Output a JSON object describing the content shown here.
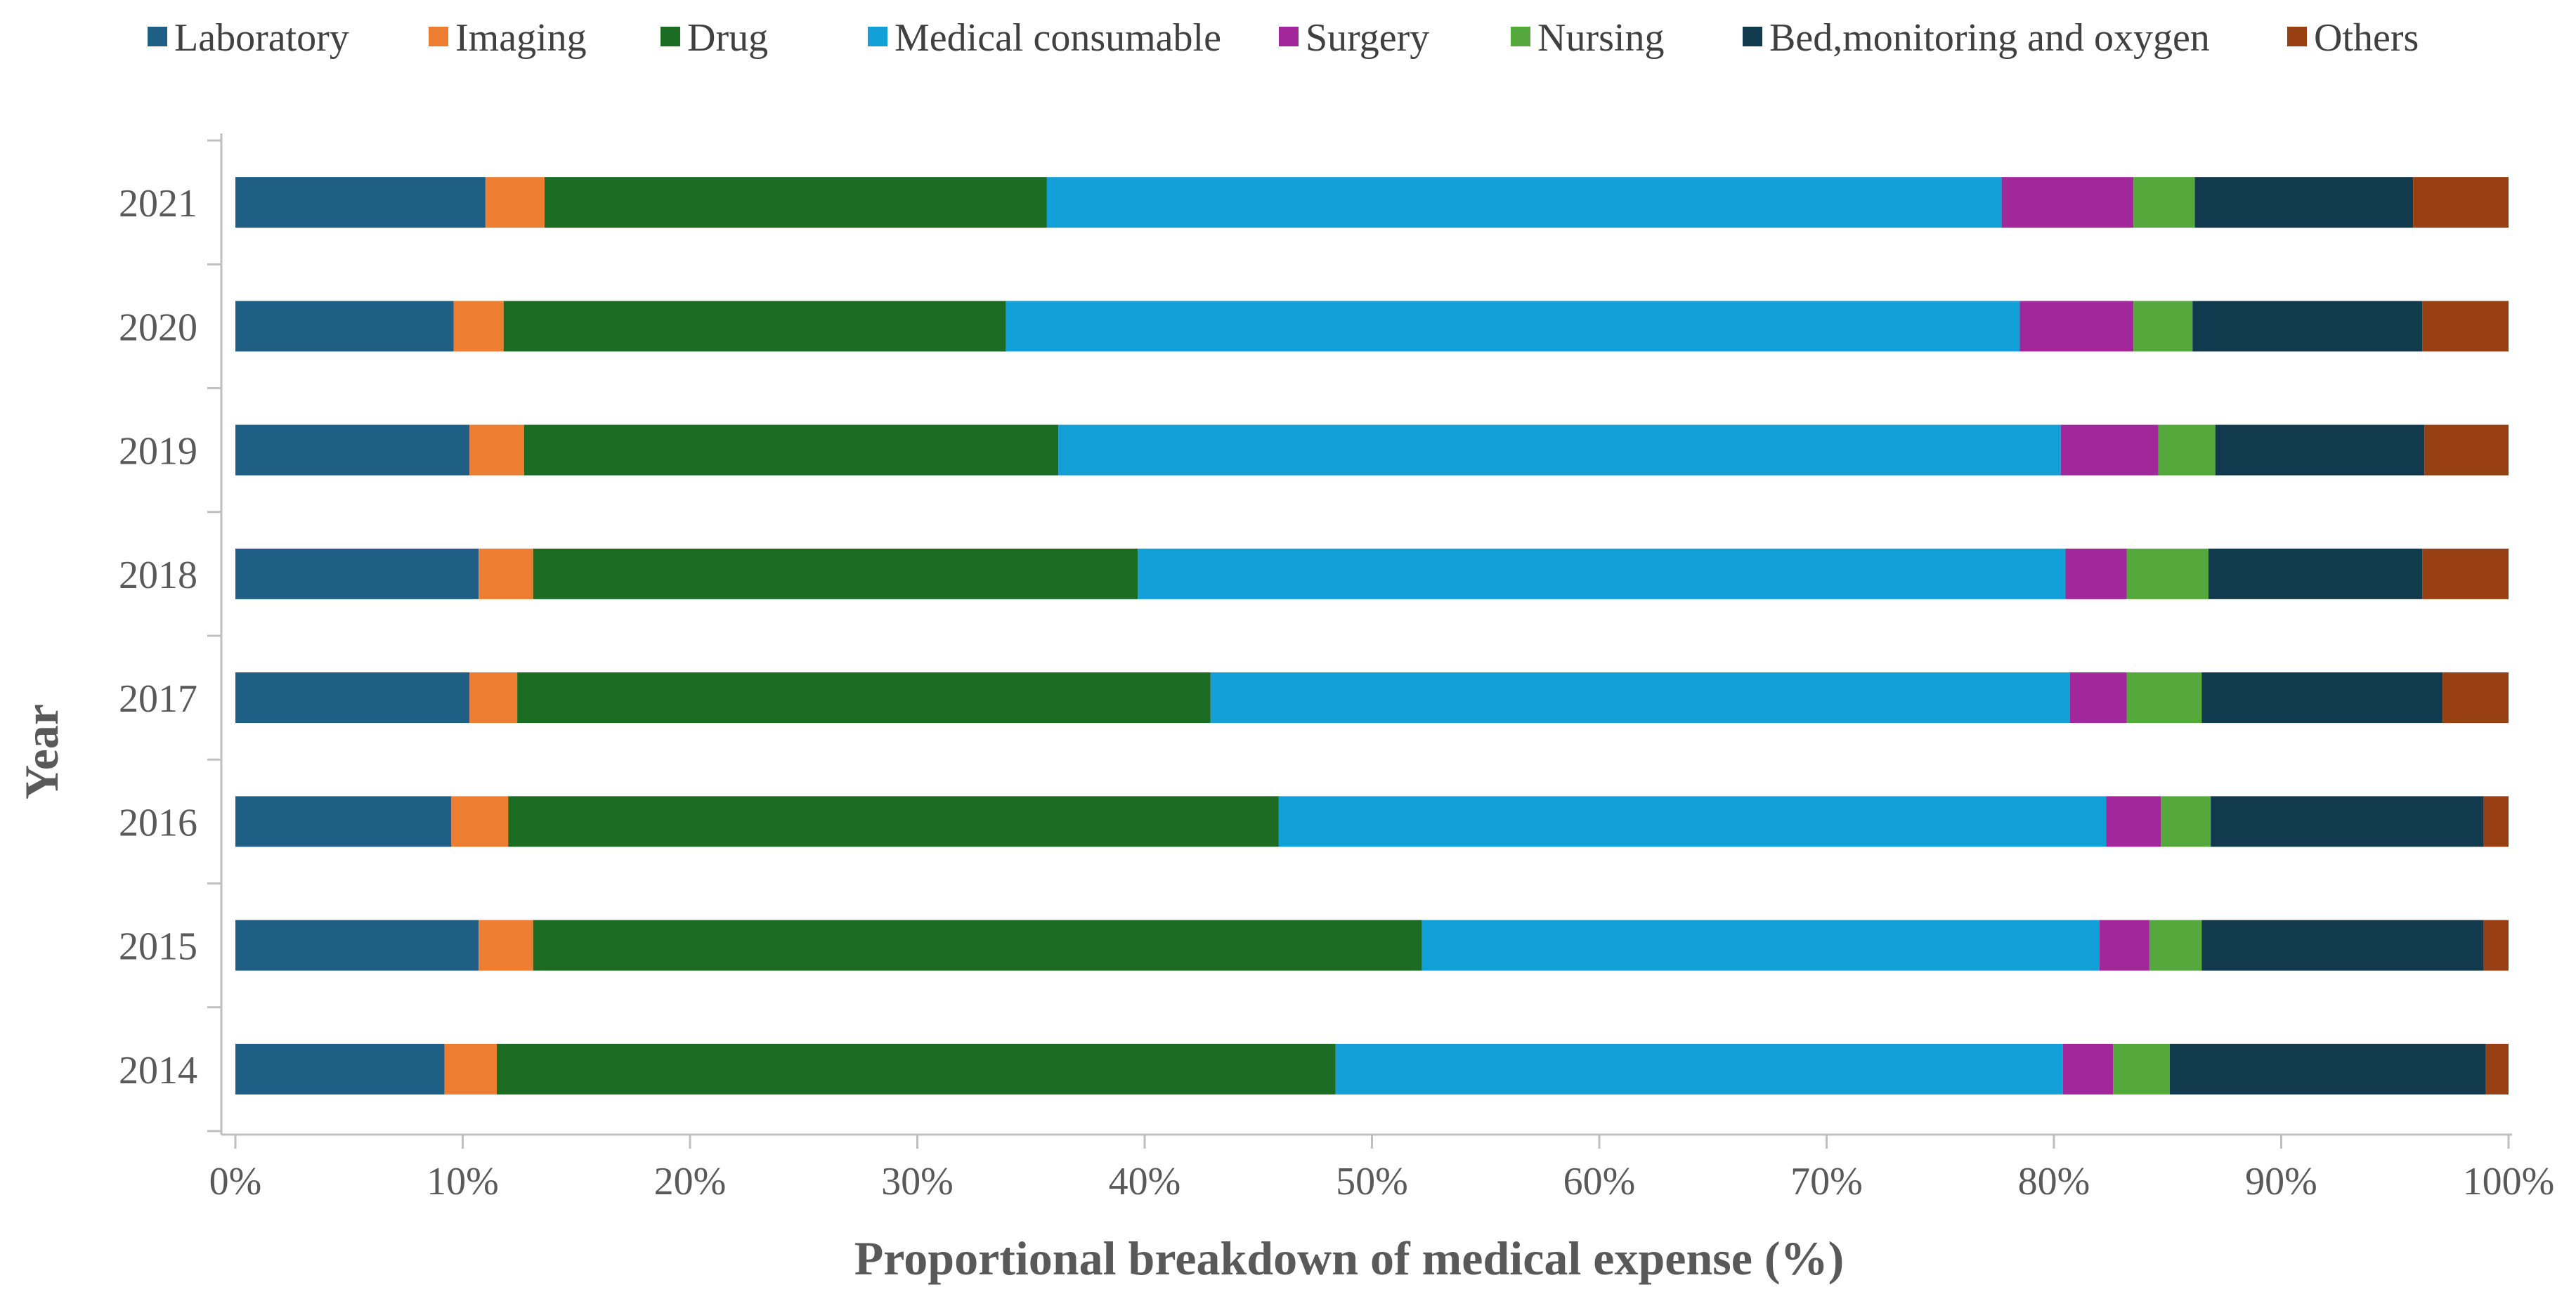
{
  "chart_data": {
    "type": "bar",
    "orientation": "horizontal",
    "stacked": "percent",
    "title": "",
    "xlabel": "Proportional breakdown of medical expense (%)",
    "ylabel": "Year",
    "xlim": [
      0,
      100
    ],
    "x_ticks": [
      "0%",
      "10%",
      "20%",
      "30%",
      "40%",
      "50%",
      "60%",
      "70%",
      "80%",
      "90%",
      "100%"
    ],
    "grid": false,
    "legend_position": "top",
    "categories": [
      "2021",
      "2020",
      "2019",
      "2018",
      "2017",
      "2016",
      "2015",
      "2014"
    ],
    "series": [
      {
        "name": "Laboratory",
        "color": "#1f5f86",
        "values": [
          11.0,
          9.6,
          10.3,
          10.7,
          10.3,
          9.5,
          10.7,
          9.2
        ]
      },
      {
        "name": "Imaging",
        "color": "#ed7d31",
        "values": [
          2.6,
          2.2,
          2.4,
          2.4,
          2.1,
          2.5,
          2.4,
          2.3
        ]
      },
      {
        "name": "Drug",
        "color": "#1b6b22",
        "values": [
          22.1,
          22.1,
          23.5,
          26.6,
          30.5,
          33.9,
          39.1,
          36.9
        ]
      },
      {
        "name": "Medical consumable",
        "color": "#13a0d8",
        "values": [
          42.0,
          44.6,
          44.1,
          40.8,
          37.8,
          36.4,
          29.8,
          32.0
        ]
      },
      {
        "name": "Surgery",
        "color": "#a1279a",
        "values": [
          5.8,
          5.0,
          4.3,
          2.7,
          2.5,
          2.4,
          2.2,
          2.2
        ]
      },
      {
        "name": "Nursing",
        "color": "#55a83b",
        "values": [
          2.7,
          2.6,
          2.5,
          3.6,
          3.3,
          2.2,
          2.3,
          2.5
        ]
      },
      {
        "name": "Bed,monitoring and oxygen",
        "color": "#123a4f",
        "values": [
          9.6,
          10.1,
          9.2,
          9.4,
          10.6,
          12.0,
          12.4,
          13.9
        ]
      },
      {
        "name": "Others",
        "color": "#983f13",
        "values": [
          4.2,
          3.8,
          3.7,
          3.8,
          2.9,
          1.1,
          1.1,
          1.0
        ]
      }
    ]
  }
}
